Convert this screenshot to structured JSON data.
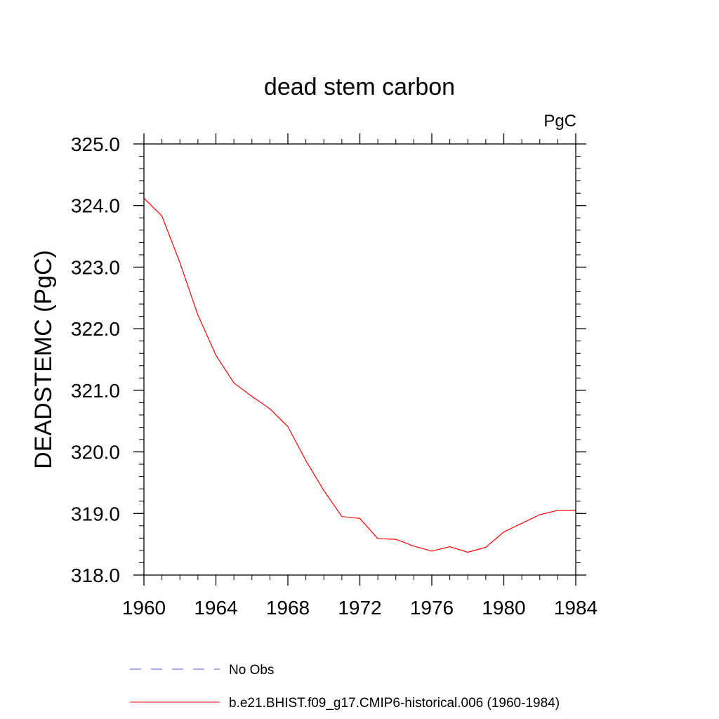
{
  "chart_data": {
    "type": "line",
    "title": "dead stem carbon",
    "units_label": "PgC",
    "xlabel": "",
    "ylabel": "DEADSTEMC  (PgC)",
    "xlim": [
      1960,
      1984
    ],
    "ylim": [
      318.0,
      325.0
    ],
    "x_ticks": [
      1960,
      1964,
      1968,
      1972,
      1976,
      1980,
      1984
    ],
    "y_ticks": [
      "318.0",
      "319.0",
      "320.0",
      "321.0",
      "322.0",
      "323.0",
      "324.0",
      "325.0"
    ],
    "x_minor_step": 1,
    "y_minor_step": 0.2,
    "grid": false,
    "series": [
      {
        "name": "b.e21.BHIST.f09_g17.CMIP6-historical.006 (1960-1984)",
        "color": "#ff0000",
        "dash": "solid",
        "x": [
          1960,
          1961,
          1962,
          1963,
          1964,
          1965,
          1966,
          1967,
          1968,
          1969,
          1970,
          1971,
          1972,
          1973,
          1974,
          1975,
          1976,
          1977,
          1978,
          1979,
          1980,
          1981,
          1982,
          1983,
          1984
        ],
        "values": [
          324.12,
          323.83,
          323.07,
          322.22,
          321.57,
          321.12,
          320.9,
          320.7,
          320.41,
          319.86,
          319.37,
          318.95,
          318.92,
          318.59,
          318.58,
          318.47,
          318.39,
          318.46,
          318.37,
          318.45,
          318.7,
          318.84,
          318.98,
          319.05,
          319.05
        ]
      }
    ],
    "legend": [
      {
        "label": "No Obs",
        "color": "#5a5ac8",
        "dash": "dashed"
      },
      {
        "label": "b.e21.BHIST.f09_g17.CMIP6-historical.006 (1960-1984)",
        "color": "#ff0000",
        "dash": "solid"
      }
    ]
  }
}
